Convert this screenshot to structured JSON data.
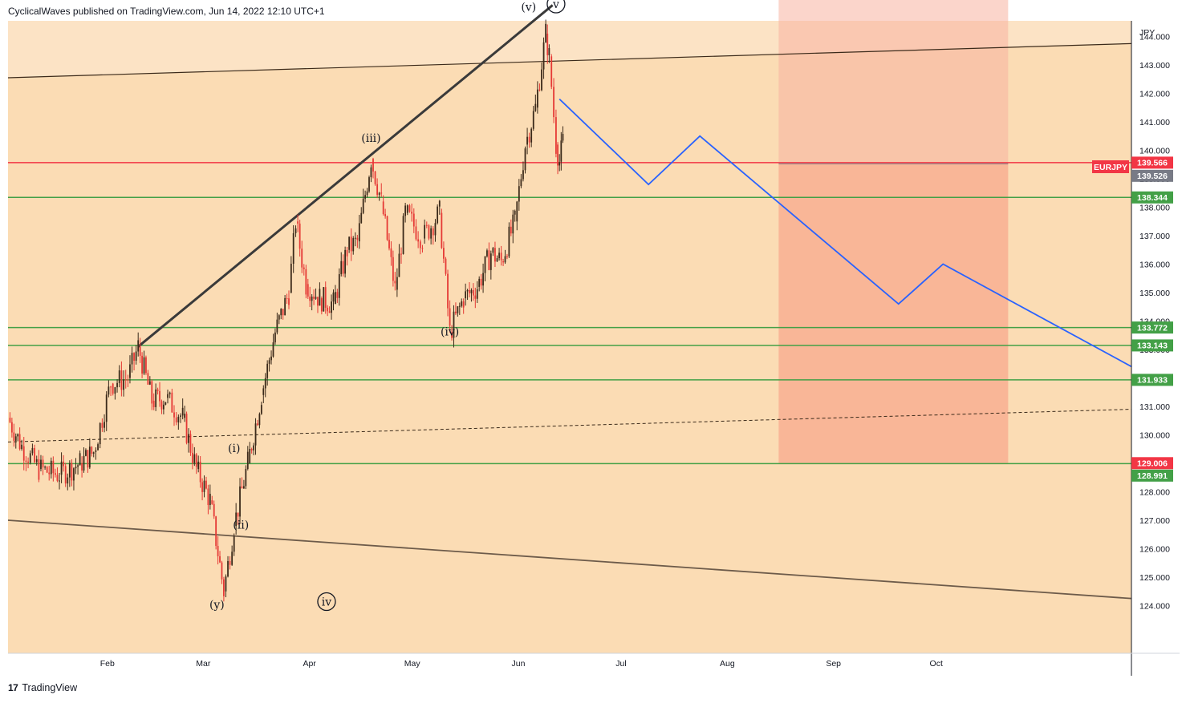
{
  "header": {
    "author": "CyclicalWaves",
    "text": "CyclicalWaves published on TradingView.com, Jun 14, 2022 12:10 UTC+1"
  },
  "footer": {
    "brand": "TradingView",
    "logo_glyph": "17"
  },
  "chart_data": {
    "type": "candlestick",
    "symbol": "EURJPY",
    "currency": "JPY",
    "x_ticks": [
      "Feb",
      "Mar",
      "Apr",
      "May",
      "Jun",
      "Jul",
      "Aug",
      "Sep",
      "Oct"
    ],
    "y_ticks": [
      124.0,
      125.0,
      126.0,
      127.0,
      128.0,
      129.0,
      130.0,
      131.0,
      132.0,
      133.0,
      134.0,
      135.0,
      136.0,
      137.0,
      138.0,
      139.0,
      140.0,
      141.0,
      142.0,
      143.0,
      144.0
    ],
    "ylim": [
      123.0,
      145.5
    ],
    "colors": {
      "background": "#fbdcb4",
      "channel_band": "#fce5cb",
      "up_candle": "#3b2a1a",
      "down_candle": "#e53935",
      "support_lines": "#43a047",
      "current_price_line": "#f23645",
      "projection": "#2962ff",
      "target_box": "#f99c84"
    },
    "price_labels": [
      {
        "value": "139.566",
        "color": "#f23645"
      },
      {
        "value": "139.526",
        "color": "#787b86"
      },
      {
        "value": "138.344",
        "color": "#43a047"
      },
      {
        "value": "133.772",
        "color": "#43a047"
      },
      {
        "value": "133.143",
        "color": "#43a047"
      },
      {
        "value": "131.933",
        "color": "#43a047"
      },
      {
        "value": "129.006",
        "color": "#f23645"
      },
      {
        "value": "128.991",
        "color": "#43a047"
      }
    ],
    "symbol_badge": "EURJPY",
    "horizontal_levels": [
      139.566,
      138.344,
      133.772,
      133.143,
      131.933,
      128.991
    ],
    "wave_labels": [
      {
        "text": "(i)",
        "date": "2022-03-10",
        "price": 129.4
      },
      {
        "text": "(ii)",
        "date": "2022-03-12",
        "price": 126.7
      },
      {
        "text": "(iii)",
        "date": "2022-04-19",
        "price": 140.3
      },
      {
        "text": "(iv)",
        "date": "2022-05-12",
        "price": 133.5
      },
      {
        "text": "(v)",
        "date": "2022-06-04",
        "price": 144.9
      },
      {
        "text": "(y)",
        "date": "2022-03-05",
        "price": 123.9
      },
      {
        "text": "v",
        "date": "2022-06-12",
        "price": 145.0,
        "circled": true
      },
      {
        "text": "iv",
        "date": "2022-04-06",
        "price": 124.0,
        "circled": true
      }
    ],
    "projection_path": [
      {
        "date": "2022-06-13",
        "price": 141.8
      },
      {
        "date": "2022-07-09",
        "price": 138.8
      },
      {
        "date": "2022-07-24",
        "price": 140.5
      },
      {
        "date": "2022-09-20",
        "price": 134.6
      },
      {
        "date": "2022-10-03",
        "price": 136.0
      },
      {
        "date": "2022-11-27",
        "price": 132.4
      }
    ],
    "target_zone": {
      "date_start": "2022-08-16",
      "date_end": "2022-10-22",
      "price_top": 145.3,
      "price_mid": 139.526,
      "price_bottom": 129.006
    },
    "trend_lines": [
      {
        "style": "solid-thin",
        "p1": {
          "date": "2022-01-03",
          "price": 142.55
        },
        "p2": {
          "date": "2022-11-27",
          "price": 143.75
        }
      },
      {
        "style": "solid-thick",
        "p1": {
          "date": "2022-02-10",
          "price": 133.1
        },
        "p2": {
          "date": "2022-06-11",
          "price": 145.1
        }
      },
      {
        "style": "dashed",
        "p1": {
          "date": "2022-01-03",
          "price": 129.75
        },
        "p2": {
          "date": "2022-11-27",
          "price": 130.9
        }
      },
      {
        "style": "solid-brown",
        "p1": {
          "date": "2022-01-03",
          "price": 127.0
        },
        "p2": {
          "date": "2022-11-27",
          "price": 124.25
        }
      }
    ],
    "price_series": [
      {
        "date": "2022-01-03",
        "price": 130.6
      },
      {
        "date": "2022-01-07",
        "price": 129.6
      },
      {
        "date": "2022-01-12",
        "price": 128.8
      },
      {
        "date": "2022-01-18",
        "price": 128.6
      },
      {
        "date": "2022-01-24",
        "price": 129.0
      },
      {
        "date": "2022-01-28",
        "price": 129.4
      },
      {
        "date": "2022-02-02",
        "price": 131.8
      },
      {
        "date": "2022-02-07",
        "price": 132.0
      },
      {
        "date": "2022-02-10",
        "price": 133.1
      },
      {
        "date": "2022-02-14",
        "price": 131.2
      },
      {
        "date": "2022-02-18",
        "price": 131.3
      },
      {
        "date": "2022-02-23",
        "price": 130.6
      },
      {
        "date": "2022-02-27",
        "price": 128.8
      },
      {
        "date": "2022-03-03",
        "price": 127.7
      },
      {
        "date": "2022-03-07",
        "price": 124.5
      },
      {
        "date": "2022-03-10",
        "price": 126.8
      },
      {
        "date": "2022-03-14",
        "price": 129.0
      },
      {
        "date": "2022-03-18",
        "price": 131.4
      },
      {
        "date": "2022-03-22",
        "price": 133.6
      },
      {
        "date": "2022-03-26",
        "price": 135.0
      },
      {
        "date": "2022-03-28",
        "price": 137.5
      },
      {
        "date": "2022-03-31",
        "price": 135.3
      },
      {
        "date": "2022-04-04",
        "price": 134.8
      },
      {
        "date": "2022-04-08",
        "price": 134.6
      },
      {
        "date": "2022-04-12",
        "price": 136.5
      },
      {
        "date": "2022-04-15",
        "price": 136.8
      },
      {
        "date": "2022-04-19",
        "price": 139.7
      },
      {
        "date": "2022-04-22",
        "price": 138.2
      },
      {
        "date": "2022-04-26",
        "price": 135.1
      },
      {
        "date": "2022-04-29",
        "price": 137.8
      },
      {
        "date": "2022-05-04",
        "price": 136.9
      },
      {
        "date": "2022-05-09",
        "price": 137.8
      },
      {
        "date": "2022-05-12",
        "price": 133.6
      },
      {
        "date": "2022-05-16",
        "price": 134.8
      },
      {
        "date": "2022-05-20",
        "price": 135.2
      },
      {
        "date": "2022-05-24",
        "price": 136.4
      },
      {
        "date": "2022-05-27",
        "price": 136.1
      },
      {
        "date": "2022-05-31",
        "price": 137.5
      },
      {
        "date": "2022-06-03",
        "price": 140.2
      },
      {
        "date": "2022-06-06",
        "price": 141.5
      },
      {
        "date": "2022-06-09",
        "price": 144.1
      },
      {
        "date": "2022-06-10",
        "price": 143.3
      },
      {
        "date": "2022-06-12",
        "price": 140.2
      },
      {
        "date": "2022-06-13",
        "price": 139.6
      },
      {
        "date": "2022-06-14",
        "price": 140.3
      }
    ]
  }
}
